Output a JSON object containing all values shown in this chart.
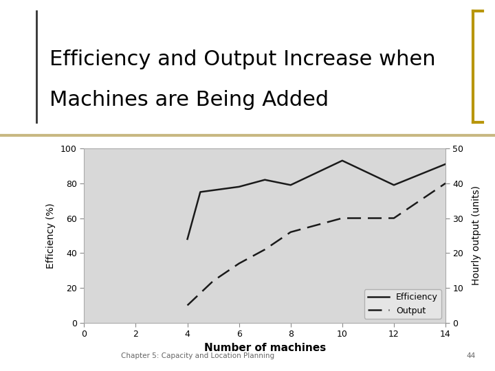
{
  "title_line1": "Efficiency and Output Increase when",
  "title_line2": "Machines are Being Added",
  "title_fontsize": 22,
  "title_color": "#000000",
  "xlabel": "Number of machines",
  "xlabel_fontsize": 11,
  "xlabel_fontweight": "bold",
  "ylabel_left": "Efficiency (%)",
  "ylabel_right": "Hourly output (units)",
  "ylabel_fontsize": 10,
  "background_color": "#ffffff",
  "plot_bg_color": "#d8d8d8",
  "efficiency_x": [
    4,
    4.5,
    5,
    6,
    7,
    8,
    10,
    12,
    14
  ],
  "efficiency_y": [
    48,
    75,
    76,
    78,
    82,
    79,
    93,
    79,
    91
  ],
  "output_x": [
    4,
    5,
    6,
    7,
    8,
    10,
    12,
    14
  ],
  "output_y": [
    5,
    12,
    17,
    21,
    26,
    30,
    30,
    40
  ],
  "xlim": [
    0,
    14
  ],
  "ylim_left": [
    0,
    100
  ],
  "ylim_right": [
    0,
    50
  ],
  "xticks": [
    0,
    2,
    4,
    6,
    8,
    10,
    12,
    14
  ],
  "yticks_left": [
    0,
    20,
    40,
    60,
    80,
    100
  ],
  "yticks_right": [
    0,
    10,
    20,
    30,
    40,
    50
  ],
  "legend_labels": [
    "Efficiency",
    "Output"
  ],
  "line_color": "#1a1a1a",
  "footer_text": "Chapter 5: Capacity and Location Planning",
  "footer_page": "44",
  "bracket_color_right": "#b8960c",
  "bracket_color_left": "#333333",
  "separator_color": "#c8b882",
  "legend_bg": "#e8e8e8"
}
